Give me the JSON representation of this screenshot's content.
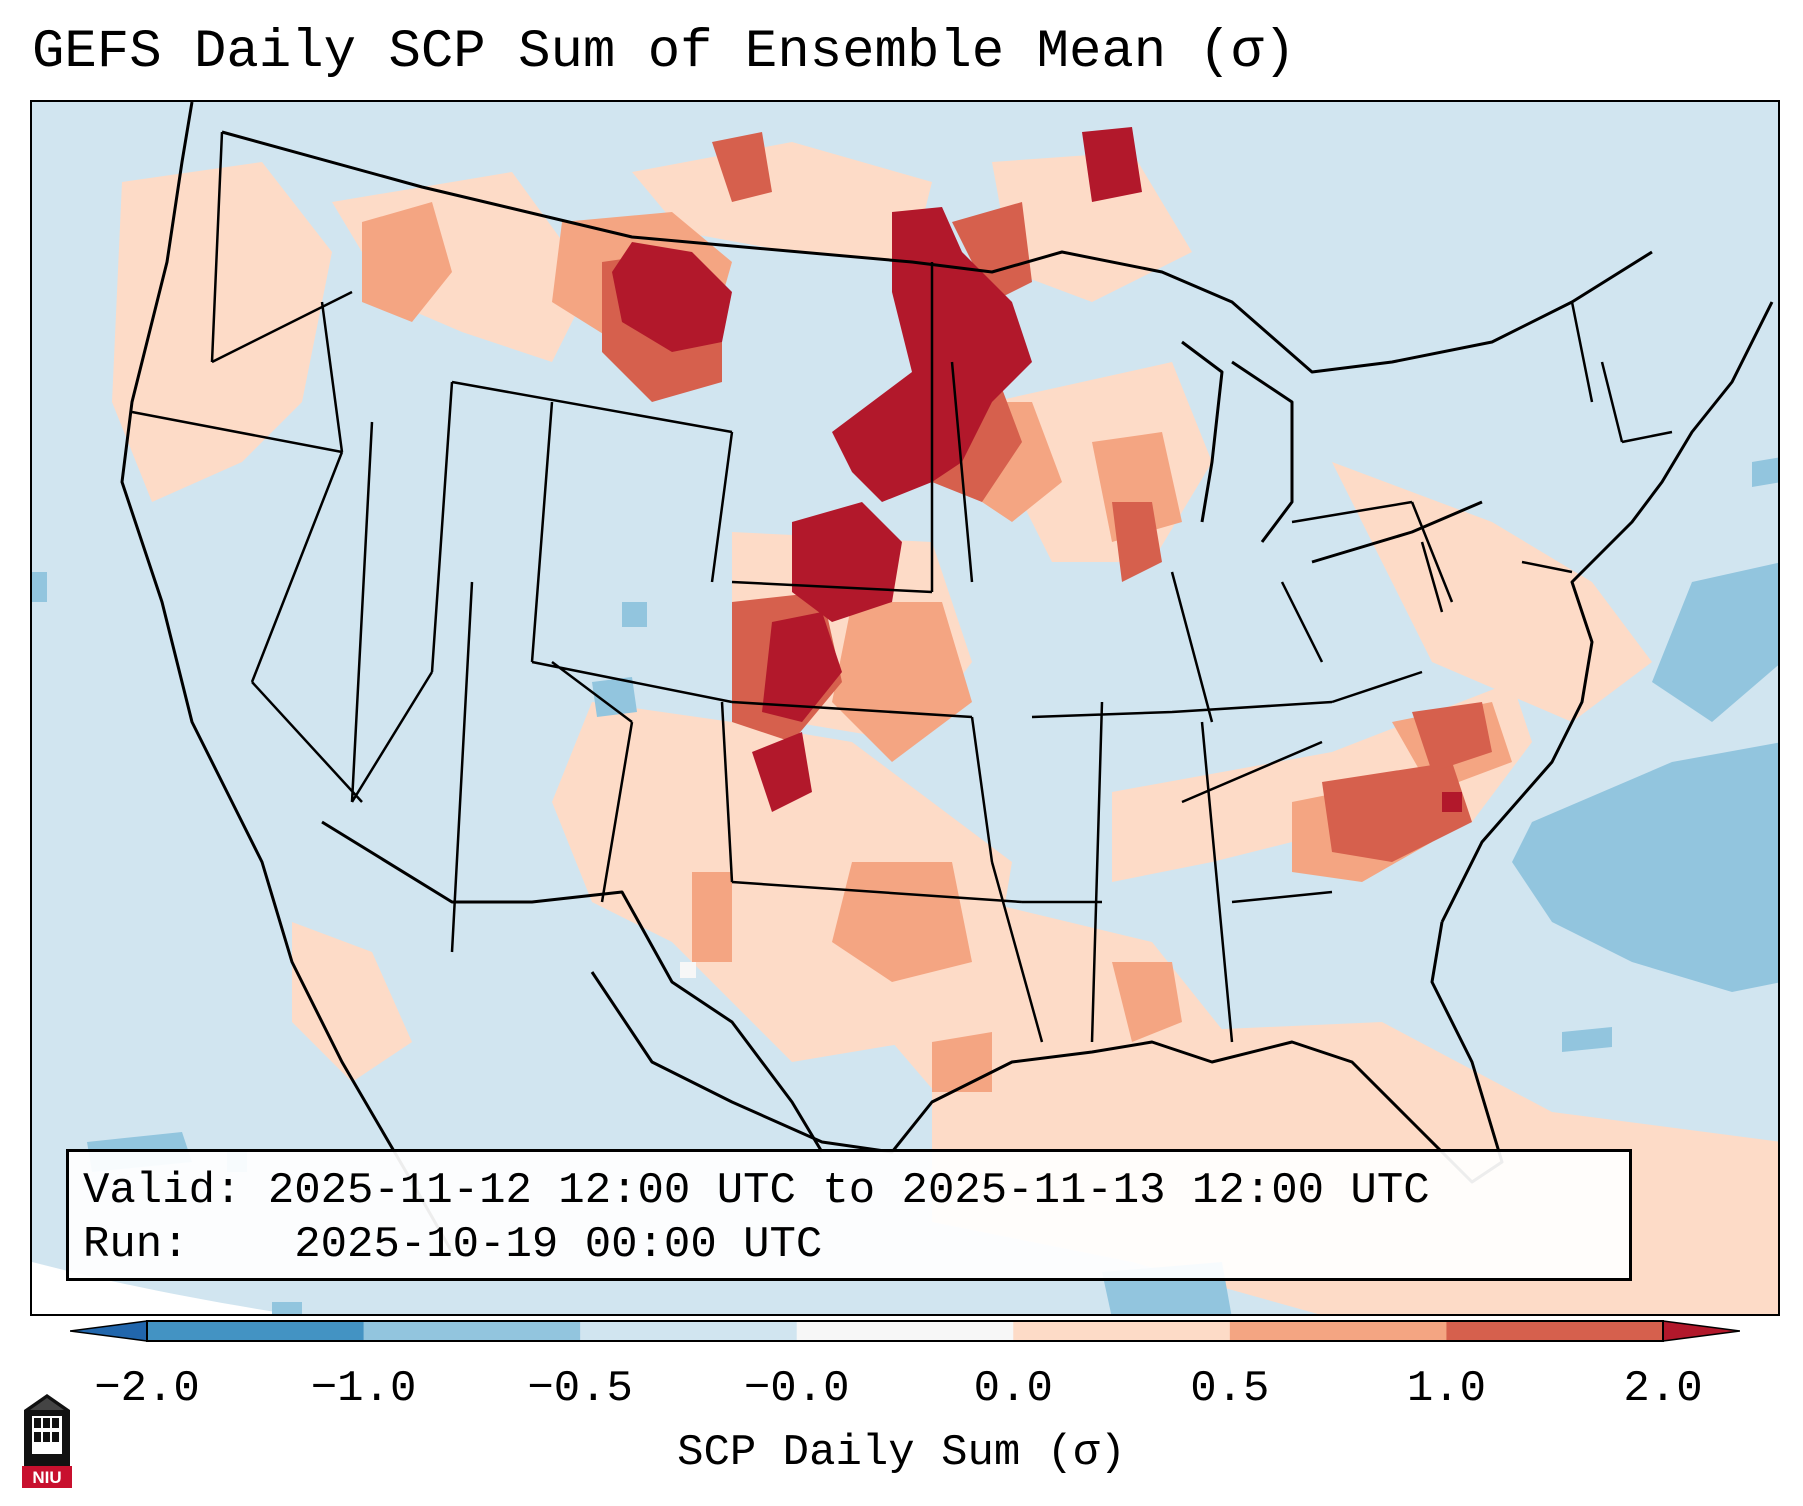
{
  "title": "GEFS Daily SCP Sum of Ensemble Mean (σ)",
  "info": {
    "valid_label": "Valid:",
    "valid_value": "2025-11-12 12:00 UTC to 2025-11-13 12:00 UTC",
    "run_label": "Run:",
    "run_value": "2025-10-19 00:00 UTC"
  },
  "colorbar": {
    "title": "SCP Daily Sum (σ)",
    "ticks": [
      "−2.0",
      "−1.0",
      "−0.5",
      "−0.0",
      "0.0",
      "0.5",
      "1.0",
      "2.0"
    ],
    "bins": [
      {
        "from": -2.0,
        "to": -1.0,
        "color": "#4393c3"
      },
      {
        "from": -1.0,
        "to": -0.5,
        "color": "#92c5de"
      },
      {
        "from": -0.5,
        "to": -0.0,
        "color": "#d1e5f0"
      },
      {
        "from": -0.0,
        "to": 0.0,
        "color": "#f7f7f7"
      },
      {
        "from": 0.0,
        "to": 0.5,
        "color": "#fddbc7"
      },
      {
        "from": 0.5,
        "to": 1.0,
        "color": "#f4a582"
      },
      {
        "from": 1.0,
        "to": 2.0,
        "color": "#d6604d"
      }
    ],
    "under_color": "#2166ac",
    "over_color": "#b2182b"
  },
  "colors": {
    "background_field": "#d1e5f0",
    "light_red": "#fddbc7",
    "mid_red": "#f4a582",
    "red": "#d6604d",
    "dark_red": "#b2182b",
    "light_blue": "#92c5de"
  },
  "logo": {
    "text": "NIU"
  }
}
